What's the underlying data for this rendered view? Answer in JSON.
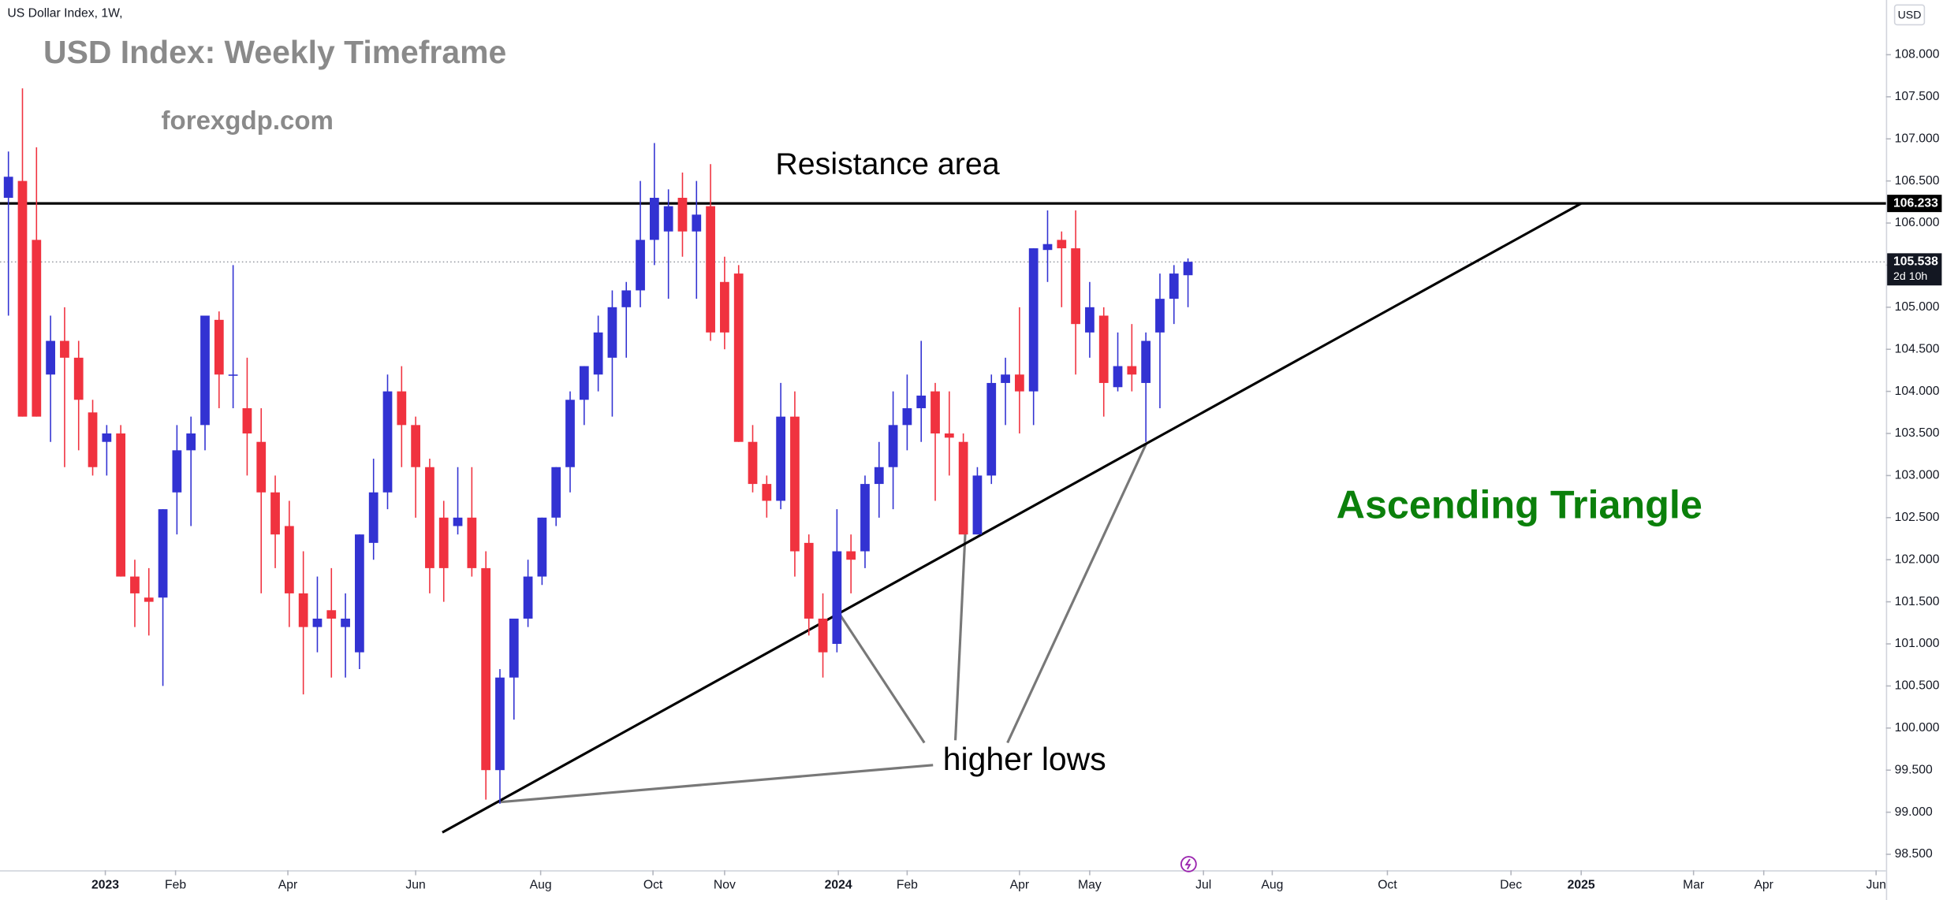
{
  "chart_data": {
    "type": "candlestick",
    "symbol_label": "US Dollar Index, 1W,",
    "currency": "USD",
    "title": "USD Index: Weekly Timeframe",
    "subtitle": "forexgdp.com",
    "annotations": {
      "resistance": "Resistance area",
      "pattern": "Ascending Triangle",
      "lows": "higher lows"
    },
    "x": [
      0,
      1,
      2,
      3,
      4,
      5,
      6,
      7,
      8,
      9,
      10,
      11,
      12,
      13,
      14,
      15,
      16,
      17,
      18,
      19,
      20,
      21,
      22,
      23,
      24,
      25,
      26,
      27,
      28,
      29,
      30,
      31,
      32,
      33,
      34,
      35,
      36,
      37,
      38,
      39,
      40,
      41,
      42,
      43,
      44,
      45,
      46,
      47,
      48,
      49,
      50,
      51,
      52,
      53,
      54,
      55,
      56,
      57,
      58,
      59,
      60,
      61,
      62,
      63,
      64,
      65,
      66,
      67,
      68,
      69,
      70,
      71,
      72,
      73,
      74,
      75,
      76,
      77,
      78,
      79,
      80,
      81,
      82,
      83,
      84
    ],
    "open": [
      106.3,
      106.5,
      105.8,
      104.2,
      104.6,
      104.4,
      103.75,
      103.4,
      103.5,
      101.8,
      101.55,
      101.55,
      102.8,
      103.3,
      103.6,
      104.85,
      104.2,
      103.8,
      103.4,
      102.8,
      102.4,
      101.6,
      101.2,
      101.4,
      101.2,
      100.9,
      102.2,
      102.8,
      104.0,
      103.6,
      103.1,
      102.5,
      102.4,
      102.5,
      101.9,
      99.5,
      100.6,
      101.3,
      101.8,
      102.5,
      103.1,
      103.9,
      104.2,
      104.4,
      105.0,
      105.2,
      105.8,
      105.9,
      106.3,
      105.9,
      106.2,
      105.3,
      105.4,
      103.4,
      102.9,
      102.7,
      103.7,
      102.2,
      101.3,
      101.0,
      102.1,
      102.1,
      102.9,
      103.1,
      103.6,
      103.8,
      104.0,
      103.5,
      103.4,
      102.3,
      103.0,
      104.1,
      104.2,
      104.0,
      105.68,
      105.8,
      105.7,
      104.7,
      104.9,
      104.05,
      104.3,
      104.1,
      104.7,
      105.1,
      105.38
    ],
    "high": [
      106.85,
      107.6,
      106.9,
      104.9,
      105.0,
      104.6,
      103.9,
      103.6,
      103.6,
      102.0,
      101.9,
      102.6,
      103.6,
      103.7,
      104.9,
      104.95,
      105.5,
      104.4,
      103.8,
      103.0,
      102.7,
      102.1,
      101.8,
      101.9,
      101.6,
      102.3,
      103.2,
      104.2,
      104.3,
      103.7,
      103.2,
      102.7,
      103.1,
      103.1,
      102.1,
      100.7,
      101.3,
      102.0,
      102.5,
      103.1,
      104.0,
      104.3,
      104.9,
      105.2,
      105.3,
      106.5,
      106.95,
      106.4,
      106.6,
      106.5,
      106.7,
      105.6,
      105.5,
      103.6,
      103.0,
      104.1,
      104.0,
      102.3,
      101.6,
      102.6,
      102.3,
      103.0,
      103.4,
      104.0,
      104.2,
      104.6,
      104.1,
      104.0,
      103.5,
      103.1,
      104.2,
      104.4,
      105.0,
      105.7,
      106.15,
      105.9,
      106.15,
      105.3,
      105.0,
      104.7,
      104.8,
      104.7,
      105.4,
      105.5,
      105.58
    ],
    "low": [
      104.9,
      103.7,
      103.7,
      103.4,
      103.1,
      103.3,
      103.0,
      103.0,
      101.8,
      101.2,
      101.1,
      100.5,
      102.3,
      102.4,
      103.3,
      103.8,
      103.8,
      103.0,
      101.6,
      101.9,
      101.2,
      100.4,
      100.9,
      100.6,
      100.6,
      100.7,
      102.0,
      102.6,
      103.1,
      102.5,
      101.6,
      101.5,
      102.3,
      101.8,
      99.15,
      99.1,
      100.1,
      101.2,
      101.7,
      102.4,
      102.8,
      103.6,
      104.0,
      103.7,
      104.4,
      105.0,
      105.5,
      105.1,
      105.6,
      105.1,
      104.6,
      104.5,
      103.4,
      102.8,
      102.5,
      102.6,
      101.8,
      101.1,
      100.6,
      100.9,
      101.6,
      101.9,
      102.5,
      102.6,
      103.3,
      103.4,
      102.7,
      103.0,
      102.3,
      102.3,
      102.9,
      103.6,
      103.5,
      103.6,
      105.3,
      105.0,
      104.2,
      104.4,
      103.7,
      104.0,
      104.0,
      103.4,
      103.8,
      104.8,
      105.0
    ],
    "close": [
      106.55,
      103.7,
      103.7,
      104.6,
      104.4,
      103.9,
      103.1,
      103.5,
      101.8,
      101.6,
      101.5,
      102.6,
      103.3,
      103.5,
      104.9,
      104.2,
      104.2,
      103.5,
      102.8,
      102.3,
      101.6,
      101.2,
      101.3,
      101.3,
      101.3,
      102.3,
      102.8,
      104.0,
      103.6,
      103.1,
      101.9,
      101.9,
      102.5,
      101.9,
      99.5,
      100.6,
      101.3,
      101.8,
      102.5,
      103.1,
      103.9,
      104.3,
      104.7,
      105.0,
      105.2,
      105.8,
      106.3,
      106.2,
      105.9,
      106.1,
      104.7,
      104.7,
      103.4,
      102.9,
      102.7,
      103.7,
      102.1,
      101.3,
      100.9,
      102.1,
      102.0,
      102.9,
      103.1,
      103.6,
      103.8,
      103.95,
      103.5,
      103.45,
      102.3,
      103.0,
      104.1,
      104.2,
      104.0,
      105.7,
      105.75,
      105.7,
      104.8,
      105.0,
      104.1,
      104.3,
      104.2,
      104.6,
      105.1,
      105.4,
      105.54
    ],
    "up_color": "#3232d2",
    "down_color": "#f0323f",
    "resistance_level": 106.233,
    "last_price": 105.538,
    "countdown": "2d 10h",
    "trendline": {
      "x": [
        30.9,
        112.0
      ],
      "y": [
        98.76,
        106.233
      ]
    },
    "xlim": [
      -0.6,
      133.7
    ],
    "xticks": [
      {
        "value": 6.9,
        "label": "2023"
      },
      {
        "value": 11.9,
        "label": "Feb"
      },
      {
        "value": 19.9,
        "label": "Apr"
      },
      {
        "value": 29.0,
        "label": "Jun"
      },
      {
        "value": 37.9,
        "label": "Aug"
      },
      {
        "value": 45.9,
        "label": "Oct"
      },
      {
        "value": 51.0,
        "label": "Nov"
      },
      {
        "value": 59.1,
        "label": "2024"
      },
      {
        "value": 64.0,
        "label": "Feb"
      },
      {
        "value": 72.0,
        "label": "Apr"
      },
      {
        "value": 77.0,
        "label": "May"
      },
      {
        "value": 85.1,
        "label": "Jul"
      },
      {
        "value": 90.0,
        "label": "Aug"
      },
      {
        "value": 98.2,
        "label": "Oct"
      },
      {
        "value": 107.0,
        "label": "Dec"
      },
      {
        "value": 112.0,
        "label": "2025"
      },
      {
        "value": 120.0,
        "label": "Mar"
      },
      {
        "value": 125.0,
        "label": "Apr"
      },
      {
        "value": 133.0,
        "label": "Jun"
      }
    ],
    "ylim": [
      98.31,
      108.65
    ],
    "yticks": [
      {
        "value": 98.5,
        "label": "98.500"
      },
      {
        "value": 99,
        "label": "99.000"
      },
      {
        "value": 99.5,
        "label": "99.500"
      },
      {
        "value": 100,
        "label": "100.000"
      },
      {
        "value": 100.5,
        "label": "100.500"
      },
      {
        "value": 101,
        "label": "101.000"
      },
      {
        "value": 101.5,
        "label": "101.500"
      },
      {
        "value": 102,
        "label": "102.000"
      },
      {
        "value": 102.5,
        "label": "102.500"
      },
      {
        "value": 103,
        "label": "103.000"
      },
      {
        "value": 103.5,
        "label": "103.500"
      },
      {
        "value": 104,
        "label": "104.000"
      },
      {
        "value": 104.5,
        "label": "104.500"
      },
      {
        "value": 105,
        "label": "105.000"
      },
      {
        "value": 105.5,
        "label": "105.500"
      },
      {
        "value": 106,
        "label": "106.000"
      },
      {
        "value": 106.5,
        "label": "106.500"
      },
      {
        "value": 107,
        "label": "107.000"
      },
      {
        "value": 107.5,
        "label": "107.500"
      },
      {
        "value": 108,
        "label": "108.000"
      }
    ],
    "grid": false
  }
}
